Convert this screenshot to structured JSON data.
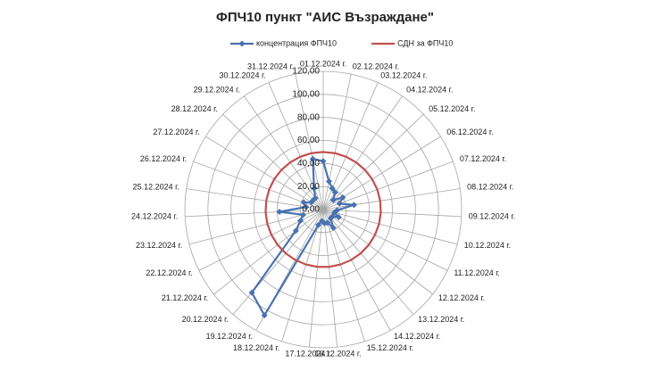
{
  "chart_data": {
    "type": "radar",
    "title": "ФПЧ10 пункт \"АИС Възраждане\"",
    "categories": [
      "01.12.2024 г.",
      "02.12.2024 г.",
      "03.12.2024 г.",
      "04.12.2024 г.",
      "05.12.2024 г.",
      "06.12.2024 г.",
      "07.12.2024 г.",
      "08.12.2024 г.",
      "09.12.2024 г.",
      "10.12.2024 г.",
      "11.12.2024 г.",
      "12.12.2024 г.",
      "13.12.2024 г.",
      "14.12.2024 г.",
      "15.12.2024 г.",
      "16.12.2024 г.",
      "17.12.2024 г.",
      "18.12.2024 г.",
      "19.12.2024 г.",
      "20.12.2024 г.",
      "21.12.2024 г.",
      "22.12.2024 г.",
      "23.12.2024 г.",
      "24.12.2024 г.",
      "25.12.2024 г.",
      "26.12.2024 г.",
      "27.12.2024 г.",
      "28.12.2024 г.",
      "29.12.2024 г.",
      "30.12.2024 г.",
      "31.12.2024 г."
    ],
    "series": [
      {
        "name": "концентрация ФПЧ10",
        "color": "#4a72b0",
        "marker": "diamond",
        "values": [
          42,
          25,
          20,
          18,
          12,
          20,
          15,
          27,
          12,
          10,
          15,
          10,
          10,
          18,
          12,
          12,
          10,
          14,
          105,
          95,
          30,
          22,
          18,
          38,
          15,
          18,
          12,
          12,
          12,
          20,
          45
        ]
      },
      {
        "name": "СДН за ФПЧ10",
        "color": "#c0504d",
        "marker": "none",
        "values": [
          50,
          50,
          50,
          50,
          50,
          50,
          50,
          50,
          50,
          50,
          50,
          50,
          50,
          50,
          50,
          50,
          50,
          50,
          50,
          50,
          50,
          50,
          50,
          50,
          50,
          50,
          50,
          50,
          50,
          50,
          50
        ]
      }
    ],
    "ylim": [
      0,
      120
    ],
    "yticks": [
      {
        "value": 0,
        "label": "0,00"
      },
      {
        "value": 20,
        "label": "20,00"
      },
      {
        "value": 40,
        "label": "40,00"
      },
      {
        "value": 60,
        "label": "60,00"
      },
      {
        "value": 80,
        "label": "80,00"
      },
      {
        "value": 100,
        "label": "100,00"
      },
      {
        "value": 120,
        "label": "120,00"
      }
    ],
    "grid": true,
    "legend": "top"
  }
}
